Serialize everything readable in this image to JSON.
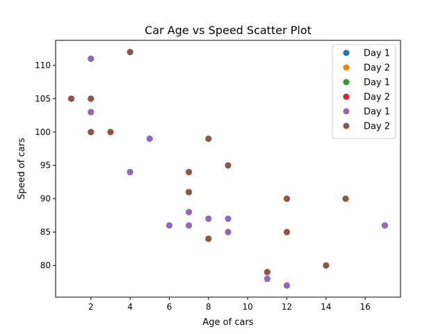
{
  "chart_data": {
    "type": "scatter",
    "title": "Car Age vs Speed Scatter Plot",
    "xlabel": "Age of cars",
    "ylabel": "Speed of cars",
    "xlim": [
      0.2,
      17.8
    ],
    "ylim": [
      75.25,
      113.75
    ],
    "xticks": [
      2,
      4,
      6,
      8,
      10,
      12,
      14,
      16
    ],
    "yticks": [
      80,
      85,
      90,
      95,
      100,
      105,
      110
    ],
    "grid": false,
    "legend_position": "top-right",
    "series": [
      {
        "name": "Day 1",
        "color": "#1f77b4",
        "x": [
          5,
          7,
          8,
          7,
          2,
          17,
          2,
          9,
          4,
          11,
          12,
          9,
          6
        ],
        "y": [
          99,
          86,
          87,
          88,
          111,
          86,
          103,
          87,
          94,
          78,
          77,
          85,
          86
        ]
      },
      {
        "name": "Day 2",
        "color": "#ff7f0e",
        "x": [
          2,
          2,
          8,
          1,
          15,
          8,
          12,
          9,
          7,
          3,
          11,
          4,
          7,
          14,
          12
        ],
        "y": [
          100,
          105,
          84,
          105,
          90,
          99,
          90,
          95,
          94,
          100,
          79,
          112,
          91,
          80,
          85
        ]
      },
      {
        "name": "Day 1",
        "color": "#2ca02c",
        "x": [
          5,
          7,
          8,
          7,
          2,
          17,
          2,
          9,
          4,
          11,
          12,
          9,
          6
        ],
        "y": [
          99,
          86,
          87,
          88,
          111,
          86,
          103,
          87,
          94,
          78,
          77,
          85,
          86
        ]
      },
      {
        "name": "Day 2",
        "color": "#d62728",
        "x": [
          2,
          2,
          8,
          1,
          15,
          8,
          12,
          9,
          7,
          3,
          11,
          4,
          7,
          14,
          12
        ],
        "y": [
          100,
          105,
          84,
          105,
          90,
          99,
          90,
          95,
          94,
          100,
          79,
          112,
          91,
          80,
          85
        ]
      },
      {
        "name": "Day 1",
        "color": "#9467bd",
        "x": [
          5,
          7,
          8,
          7,
          2,
          17,
          2,
          9,
          4,
          11,
          12,
          9,
          6
        ],
        "y": [
          99,
          86,
          87,
          88,
          111,
          86,
          103,
          87,
          94,
          78,
          77,
          85,
          86
        ]
      },
      {
        "name": "Day 2",
        "color": "#8c564b",
        "x": [
          2,
          2,
          8,
          1,
          15,
          8,
          12,
          9,
          7,
          3,
          11,
          4,
          7,
          14,
          12
        ],
        "y": [
          100,
          105,
          84,
          105,
          90,
          99,
          90,
          95,
          94,
          100,
          79,
          112,
          91,
          80,
          85
        ]
      }
    ]
  }
}
